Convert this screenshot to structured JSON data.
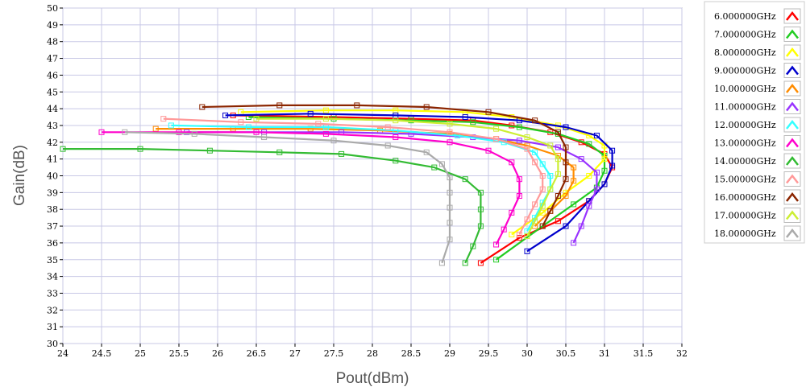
{
  "chart_data": {
    "type": "line",
    "title": "",
    "xlabel": "Pout(dBm)",
    "ylabel": "Gain(dB)",
    "xlim": [
      24,
      32
    ],
    "ylim": [
      30,
      50
    ],
    "x_ticks": [
      "24",
      "24.5",
      "25",
      "25.5",
      "26",
      "26.5",
      "27",
      "27.5",
      "28",
      "28.5",
      "29",
      "29.5",
      "30",
      "30.5",
      "31",
      "31.5",
      "32"
    ],
    "y_ticks": [
      "30",
      "31",
      "32",
      "33",
      "34",
      "35",
      "36",
      "37",
      "38",
      "39",
      "40",
      "41",
      "42",
      "43",
      "44",
      "45",
      "46",
      "47",
      "48",
      "49",
      "50"
    ],
    "grid": true,
    "legend_position": "right",
    "marker": "square",
    "series": [
      {
        "name": "6.000000GHz",
        "color": "#ff0000",
        "points": [
          [
            26.2,
            43.6
          ],
          [
            27.5,
            43.5
          ],
          [
            28.5,
            43.4
          ],
          [
            29.3,
            43.3
          ],
          [
            29.8,
            43.0
          ],
          [
            30.3,
            42.6
          ],
          [
            30.7,
            42.0
          ],
          [
            31.0,
            41.3
          ],
          [
            31.1,
            40.5
          ],
          [
            31.0,
            39.5
          ],
          [
            30.8,
            38.5
          ],
          [
            30.4,
            37.3
          ],
          [
            29.9,
            36.3
          ],
          [
            29.4,
            34.8
          ]
        ]
      },
      {
        "name": "7.000000GHz",
        "color": "#22cc22",
        "points": [
          [
            26.4,
            43.5
          ],
          [
            27.5,
            43.4
          ],
          [
            28.5,
            43.3
          ],
          [
            29.3,
            43.2
          ],
          [
            29.9,
            42.9
          ],
          [
            30.4,
            42.5
          ],
          [
            30.8,
            41.9
          ],
          [
            31.0,
            41.2
          ],
          [
            31.0,
            40.3
          ],
          [
            30.9,
            39.3
          ],
          [
            30.6,
            38.3
          ],
          [
            30.2,
            37.0
          ],
          [
            29.6,
            35.0
          ]
        ]
      },
      {
        "name": "8.000000GHz",
        "color": "#ffff00",
        "points": [
          [
            26.3,
            43.8
          ],
          [
            27.4,
            43.9
          ],
          [
            28.3,
            43.9
          ],
          [
            29.2,
            43.8
          ],
          [
            29.8,
            43.5
          ],
          [
            30.4,
            43.0
          ],
          [
            30.8,
            42.4
          ],
          [
            31.0,
            41.8
          ],
          [
            31.0,
            41.0
          ],
          [
            30.8,
            40.0
          ],
          [
            30.5,
            39.0
          ],
          [
            30.2,
            37.8
          ],
          [
            29.8,
            36.5
          ]
        ]
      },
      {
        "name": "9.000000GHz",
        "color": "#0000cc",
        "points": [
          [
            26.1,
            43.6
          ],
          [
            27.2,
            43.7
          ],
          [
            28.3,
            43.6
          ],
          [
            29.2,
            43.5
          ],
          [
            29.9,
            43.3
          ],
          [
            30.5,
            42.9
          ],
          [
            30.9,
            42.4
          ],
          [
            31.1,
            41.5
          ],
          [
            31.1,
            40.6
          ],
          [
            31.0,
            39.5
          ],
          [
            30.8,
            38.5
          ],
          [
            30.5,
            37.0
          ],
          [
            30.0,
            35.5
          ]
        ]
      },
      {
        "name": "10.00000GHz",
        "color": "#ff8c00",
        "points": [
          [
            25.2,
            42.8
          ],
          [
            26.2,
            42.8
          ],
          [
            27.2,
            42.8
          ],
          [
            28.1,
            42.7
          ],
          [
            29.0,
            42.5
          ],
          [
            29.6,
            42.2
          ],
          [
            30.0,
            41.8
          ],
          [
            30.4,
            41.2
          ],
          [
            30.6,
            40.5
          ],
          [
            30.6,
            39.7
          ],
          [
            30.5,
            38.8
          ],
          [
            30.3,
            37.9
          ],
          [
            30.1,
            37.0
          ]
        ]
      },
      {
        "name": "11.00000GHz",
        "color": "#9933ff",
        "points": [
          [
            25.6,
            42.6
          ],
          [
            26.6,
            42.6
          ],
          [
            27.6,
            42.6
          ],
          [
            28.5,
            42.5
          ],
          [
            29.3,
            42.3
          ],
          [
            29.9,
            42.1
          ],
          [
            30.4,
            41.7
          ],
          [
            30.7,
            41.0
          ],
          [
            30.9,
            40.2
          ],
          [
            30.9,
            39.2
          ],
          [
            30.8,
            38.2
          ],
          [
            30.7,
            37.0
          ],
          [
            30.6,
            36.0
          ]
        ]
      },
      {
        "name": "12.00000GHz",
        "color": "#33ffff",
        "points": [
          [
            25.4,
            43.0
          ],
          [
            26.4,
            42.9
          ],
          [
            27.4,
            42.9
          ],
          [
            28.3,
            42.7
          ],
          [
            29.1,
            42.4
          ],
          [
            29.7,
            42.0
          ],
          [
            30.1,
            41.4
          ],
          [
            30.2,
            40.7
          ],
          [
            30.3,
            40.0
          ],
          [
            30.3,
            39.2
          ],
          [
            30.2,
            38.4
          ],
          [
            30.1,
            37.5
          ],
          [
            30.0,
            36.7
          ]
        ]
      },
      {
        "name": "13.00000GHz",
        "color": "#ff00cc",
        "points": [
          [
            24.5,
            42.6
          ],
          [
            25.5,
            42.6
          ],
          [
            26.5,
            42.6
          ],
          [
            27.4,
            42.5
          ],
          [
            28.3,
            42.3
          ],
          [
            29.0,
            42.0
          ],
          [
            29.5,
            41.5
          ],
          [
            29.8,
            40.8
          ],
          [
            29.9,
            39.8
          ],
          [
            29.9,
            38.8
          ],
          [
            29.8,
            37.8
          ],
          [
            29.7,
            36.8
          ],
          [
            29.6,
            35.9
          ]
        ]
      },
      {
        "name": "14.00000GHz",
        "color": "#33bb33",
        "points": [
          [
            24.0,
            41.6
          ],
          [
            25.0,
            41.6
          ],
          [
            25.9,
            41.5
          ],
          [
            26.8,
            41.4
          ],
          [
            27.6,
            41.3
          ],
          [
            28.3,
            40.9
          ],
          [
            28.8,
            40.5
          ],
          [
            29.2,
            39.8
          ],
          [
            29.4,
            39.0
          ],
          [
            29.4,
            38.0
          ],
          [
            29.4,
            37.0
          ],
          [
            29.3,
            35.8
          ],
          [
            29.2,
            34.8
          ]
        ]
      },
      {
        "name": "15.00000GHz",
        "color": "#ff9999",
        "points": [
          [
            25.3,
            43.4
          ],
          [
            26.3,
            43.2
          ],
          [
            27.3,
            43.1
          ],
          [
            28.2,
            42.9
          ],
          [
            29.0,
            42.6
          ],
          [
            29.6,
            42.2
          ],
          [
            30.0,
            41.6
          ],
          [
            30.1,
            40.8
          ],
          [
            30.2,
            40.0
          ],
          [
            30.2,
            39.2
          ],
          [
            30.1,
            38.3
          ],
          [
            30.0,
            37.4
          ],
          [
            29.9,
            36.5
          ]
        ]
      },
      {
        "name": "16.00000GHz",
        "color": "#8b2500",
        "points": [
          [
            25.8,
            44.1
          ],
          [
            26.8,
            44.2
          ],
          [
            27.8,
            44.2
          ],
          [
            28.7,
            44.1
          ],
          [
            29.5,
            43.8
          ],
          [
            30.1,
            43.3
          ],
          [
            30.4,
            42.6
          ],
          [
            30.5,
            41.7
          ],
          [
            30.5,
            40.8
          ],
          [
            30.5,
            39.8
          ],
          [
            30.4,
            38.8
          ],
          [
            30.3,
            37.9
          ],
          [
            30.2,
            37.0
          ]
        ]
      },
      {
        "name": "17.00000GHz",
        "color": "#ccee33",
        "points": [
          [
            26.5,
            43.4
          ],
          [
            27.4,
            43.4
          ],
          [
            28.3,
            43.3
          ],
          [
            29.0,
            43.1
          ],
          [
            29.6,
            42.8
          ],
          [
            30.0,
            42.3
          ],
          [
            30.3,
            41.8
          ],
          [
            30.4,
            41.0
          ],
          [
            30.4,
            40.1
          ],
          [
            30.3,
            39.2
          ],
          [
            30.2,
            38.2
          ],
          [
            30.1,
            37.3
          ],
          [
            30.0,
            36.4
          ]
        ]
      },
      {
        "name": "18.00000GHz",
        "color": "#aaaaaa",
        "points": [
          [
            24.8,
            42.6
          ],
          [
            25.7,
            42.5
          ],
          [
            26.6,
            42.3
          ],
          [
            27.5,
            42.1
          ],
          [
            28.2,
            41.8
          ],
          [
            28.7,
            41.4
          ],
          [
            28.9,
            40.7
          ],
          [
            29.0,
            39.9
          ],
          [
            29.0,
            39.0
          ],
          [
            29.0,
            38.1
          ],
          [
            29.0,
            37.2
          ],
          [
            29.0,
            36.2
          ],
          [
            28.9,
            34.8
          ]
        ]
      }
    ]
  }
}
